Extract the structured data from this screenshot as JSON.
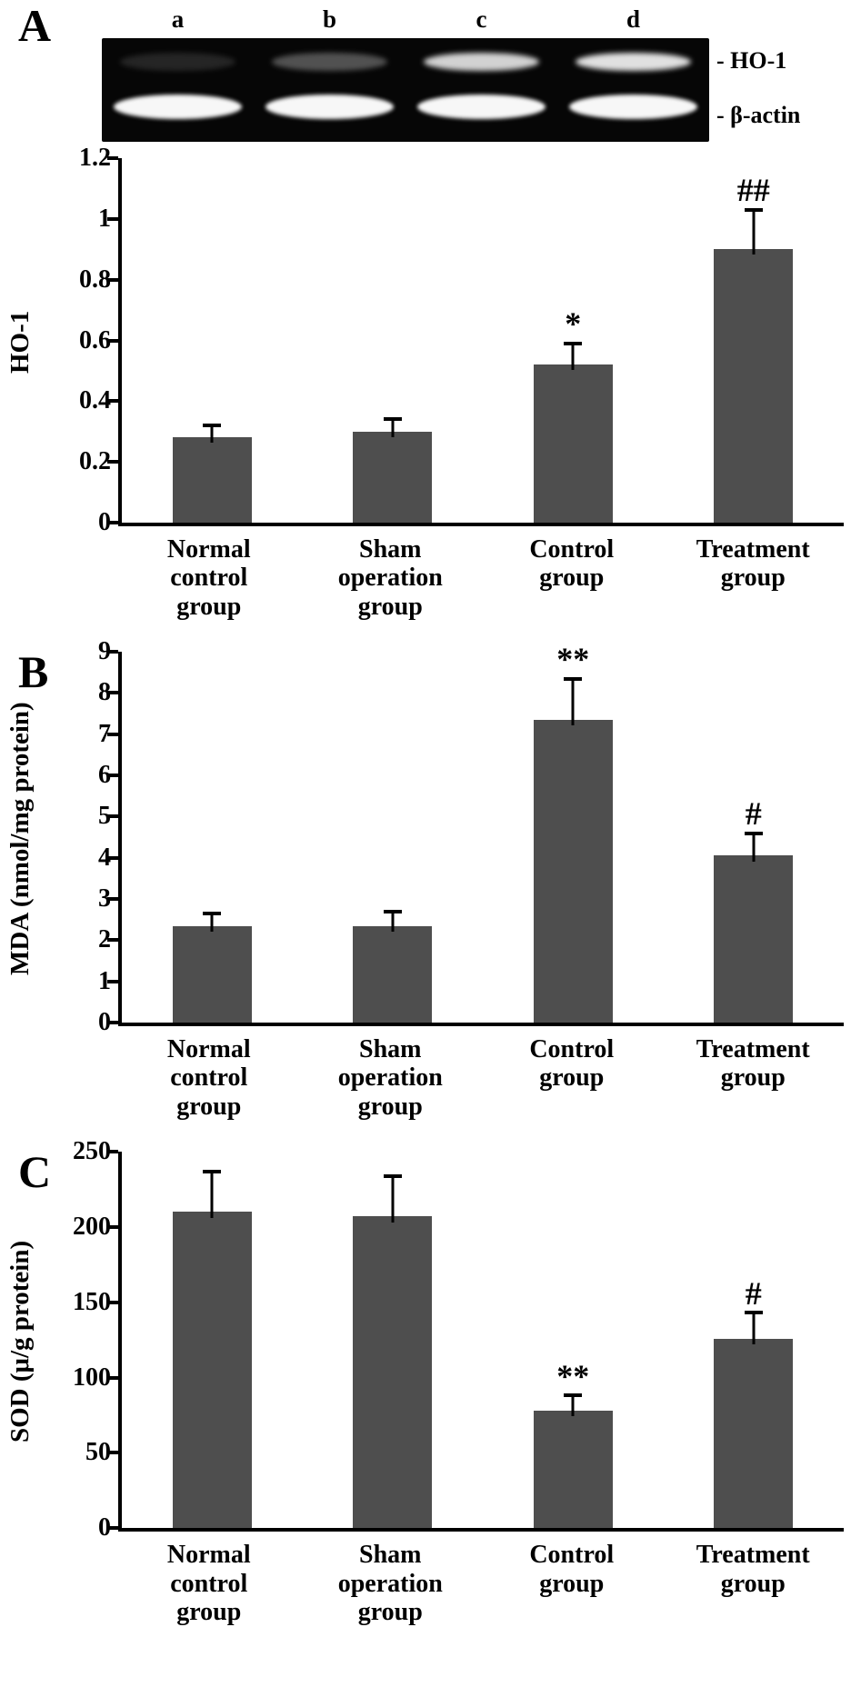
{
  "figure": {
    "background": "#ffffff",
    "bar_color": "#4e4e4e",
    "axis_color": "#000000"
  },
  "panels": [
    {
      "label": "A"
    },
    {
      "label": "B"
    },
    {
      "label": "C"
    }
  ],
  "gel": {
    "lane_labels": [
      "a",
      "b",
      "c",
      "d"
    ],
    "band_labels": [
      "- HO-1",
      "- β-actin"
    ],
    "ho1_band_intensity": [
      0.12,
      0.3,
      0.82,
      0.88
    ],
    "actin_band_intensity": [
      0.97,
      0.97,
      0.97,
      0.97
    ]
  },
  "chart_data": [
    {
      "type": "bar",
      "panel": "A",
      "ylabel": "HO-1",
      "categories": [
        "Normal\ncontrol\ngroup",
        "Sham\noperation\ngroup",
        "Control\ngroup",
        "Treatment\ngroup"
      ],
      "values": [
        0.28,
        0.3,
        0.52,
        0.9
      ],
      "errors": [
        0.04,
        0.04,
        0.07,
        0.13
      ],
      "annotations": [
        "",
        "",
        "*",
        "##"
      ],
      "ylim": [
        0,
        1.2
      ],
      "yticks": [
        0,
        0.2,
        0.4,
        0.6,
        0.8,
        1,
        1.2
      ],
      "ytick_labels": [
        "0",
        "0.2",
        "0.4",
        "0.6",
        "0.8",
        "1",
        "1.2"
      ],
      "grid": false,
      "legend": "none"
    },
    {
      "type": "bar",
      "panel": "B",
      "ylabel": "MDA (nmol/mg protein)",
      "categories": [
        "Normal\ncontrol\ngroup",
        "Sham\noperation\ngroup",
        "Control\ngroup",
        "Treatment\ngroup"
      ],
      "values": [
        2.35,
        2.35,
        7.35,
        4.05
      ],
      "errors": [
        0.3,
        0.35,
        1.0,
        0.55
      ],
      "annotations": [
        "",
        "",
        "**",
        "#"
      ],
      "ylim": [
        0,
        9
      ],
      "yticks": [
        0,
        1,
        2,
        3,
        4,
        5,
        6,
        7,
        8,
        9
      ],
      "ytick_labels": [
        "0",
        "1",
        "2",
        "3",
        "4",
        "5",
        "6",
        "7",
        "8",
        "9"
      ],
      "grid": false,
      "legend": "none"
    },
    {
      "type": "bar",
      "panel": "C",
      "ylabel": "SOD (μ/g protein)",
      "categories": [
        "Normal\ncontrol\ngroup",
        "Sham\noperation\ngroup",
        "Control\ngroup",
        "Treatment\ngroup"
      ],
      "values": [
        210,
        207,
        78,
        126
      ],
      "errors": [
        27,
        27,
        10,
        17
      ],
      "annotations": [
        "",
        "",
        "**",
        "#"
      ],
      "ylim": [
        0,
        250
      ],
      "yticks": [
        0,
        50,
        100,
        150,
        200,
        250
      ],
      "ytick_labels": [
        "0",
        "50",
        "100",
        "150",
        "200",
        "250"
      ],
      "grid": false,
      "legend": "none"
    }
  ]
}
